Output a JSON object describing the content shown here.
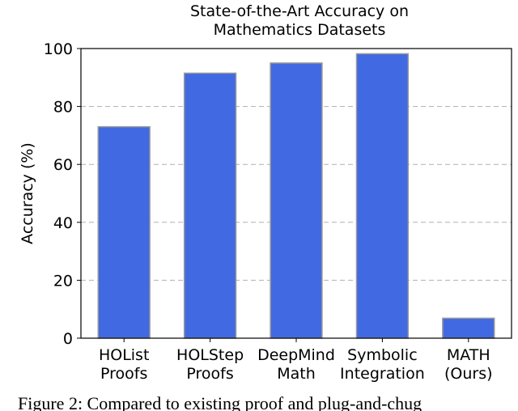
{
  "chart_data": {
    "type": "bar",
    "title": "State-of-the-Art Accuracy on\nMathematics Datasets",
    "y_label": "Accuracy (%)",
    "categories": [
      "HOList\nProofs",
      "HOLStep\nProofs",
      "DeepMind\nMath",
      "Symbolic\nIntegration",
      "MATH\n(Ours)"
    ],
    "values": [
      73,
      91.5,
      95,
      98.2,
      6.9
    ],
    "color": "#4169e1",
    "ylim": [
      0,
      100
    ],
    "yticks": [
      0,
      20,
      40,
      60,
      80,
      100
    ],
    "grid": true
  },
  "caption": "Figure 2: Compared to existing proof and plug-and-chug"
}
